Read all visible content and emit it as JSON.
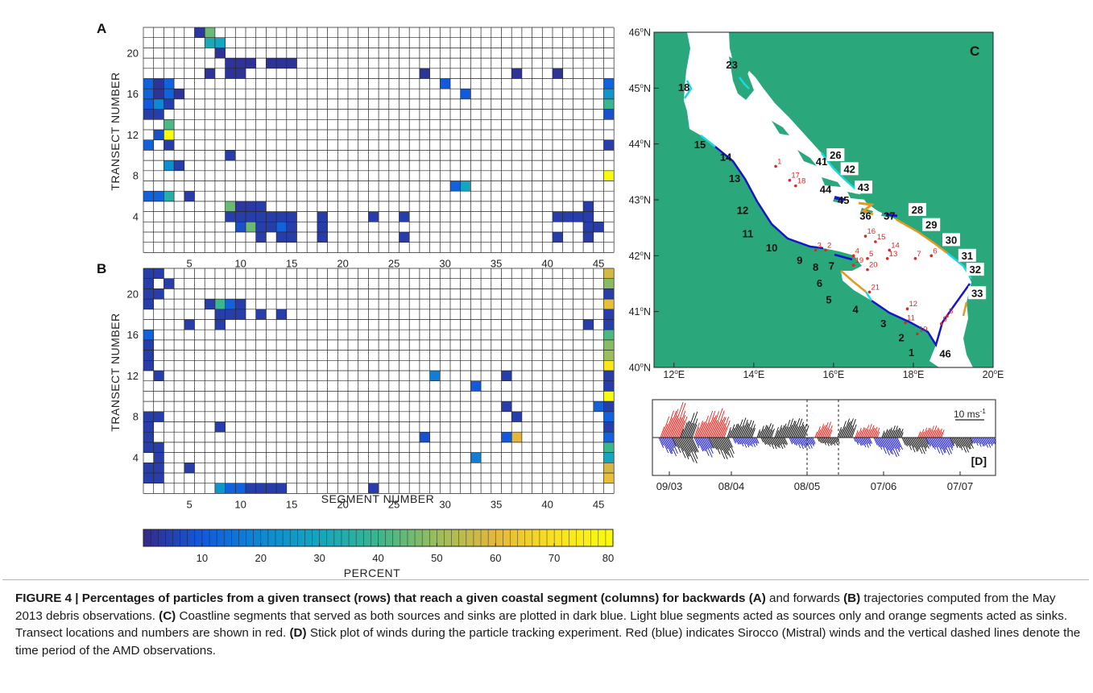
{
  "panels": {
    "a_label": "A",
    "b_label": "B",
    "c_label": "C",
    "d_label": "[D]"
  },
  "heatmap": {
    "ylabel": "TRANSECT NUMBER",
    "xlabel": "SEGMENT NUMBER",
    "x_ticks": [
      "5",
      "10",
      "15",
      "20",
      "25",
      "30",
      "35",
      "40",
      "45"
    ],
    "y_ticks": [
      "4",
      "8",
      "12",
      "16",
      "20"
    ]
  },
  "colorbar": {
    "label": "PERCENT",
    "ticks": [
      "10",
      "20",
      "30",
      "40",
      "50",
      "60",
      "70",
      "80"
    ],
    "stops": [
      "#352a87",
      "#1259dd",
      "#0d88d2",
      "#13a6c0",
      "#3bb58e",
      "#9bbd5b",
      "#e3b73e",
      "#fbe11f",
      "#f9fb0e"
    ]
  },
  "chart_data": [
    {
      "type": "heatmap",
      "panel": "A",
      "xlabel": "SEGMENT NUMBER",
      "ylabel": "TRANSECT NUMBER",
      "xlim": [
        1,
        46
      ],
      "ylim": [
        1,
        22
      ],
      "value_label": "PERCENT",
      "cells": [
        {
          "x": 6,
          "y": 22,
          "v": 3
        },
        {
          "x": 7,
          "y": 22,
          "v": 45
        },
        {
          "x": 7,
          "y": 21,
          "v": 32
        },
        {
          "x": 8,
          "y": 21,
          "v": 30
        },
        {
          "x": 8,
          "y": 20,
          "v": 2
        },
        {
          "x": 9,
          "y": 19,
          "v": 2
        },
        {
          "x": 10,
          "y": 19,
          "v": 2
        },
        {
          "x": 11,
          "y": 19,
          "v": 2
        },
        {
          "x": 13,
          "y": 19,
          "v": 2
        },
        {
          "x": 14,
          "y": 19,
          "v": 2
        },
        {
          "x": 15,
          "y": 19,
          "v": 2
        },
        {
          "x": 7,
          "y": 18,
          "v": 2
        },
        {
          "x": 9,
          "y": 18,
          "v": 2
        },
        {
          "x": 10,
          "y": 18,
          "v": 2
        },
        {
          "x": 28,
          "y": 18,
          "v": 2
        },
        {
          "x": 37,
          "y": 18,
          "v": 2
        },
        {
          "x": 41,
          "y": 18,
          "v": 2
        },
        {
          "x": 1,
          "y": 17,
          "v": 12
        },
        {
          "x": 2,
          "y": 17,
          "v": 2
        },
        {
          "x": 3,
          "y": 17,
          "v": 12
        },
        {
          "x": 30,
          "y": 17,
          "v": 10
        },
        {
          "x": 46,
          "y": 17,
          "v": 12
        },
        {
          "x": 1,
          "y": 16,
          "v": 12
        },
        {
          "x": 2,
          "y": 16,
          "v": 2
        },
        {
          "x": 3,
          "y": 16,
          "v": 12
        },
        {
          "x": 4,
          "y": 16,
          "v": 2
        },
        {
          "x": 32,
          "y": 16,
          "v": 10
        },
        {
          "x": 46,
          "y": 16,
          "v": 25
        },
        {
          "x": 1,
          "y": 15,
          "v": 10
        },
        {
          "x": 2,
          "y": 15,
          "v": 20
        },
        {
          "x": 3,
          "y": 15,
          "v": 4
        },
        {
          "x": 46,
          "y": 15,
          "v": 40
        },
        {
          "x": 1,
          "y": 14,
          "v": 4
        },
        {
          "x": 2,
          "y": 14,
          "v": 4
        },
        {
          "x": 46,
          "y": 14,
          "v": 8
        },
        {
          "x": 3,
          "y": 13,
          "v": 42
        },
        {
          "x": 2,
          "y": 12,
          "v": 8
        },
        {
          "x": 3,
          "y": 12,
          "v": 80
        },
        {
          "x": 1,
          "y": 11,
          "v": 12
        },
        {
          "x": 3,
          "y": 11,
          "v": 4
        },
        {
          "x": 46,
          "y": 11,
          "v": 4
        },
        {
          "x": 9,
          "y": 10,
          "v": 4
        },
        {
          "x": 3,
          "y": 9,
          "v": 22
        },
        {
          "x": 4,
          "y": 9,
          "v": 4
        },
        {
          "x": 46,
          "y": 8,
          "v": 80
        },
        {
          "x": 31,
          "y": 7,
          "v": 12
        },
        {
          "x": 32,
          "y": 7,
          "v": 30
        },
        {
          "x": 1,
          "y": 6,
          "v": 12
        },
        {
          "x": 2,
          "y": 6,
          "v": 12
        },
        {
          "x": 3,
          "y": 6,
          "v": 35
        },
        {
          "x": 5,
          "y": 6,
          "v": 4
        },
        {
          "x": 9,
          "y": 5,
          "v": 45
        },
        {
          "x": 10,
          "y": 5,
          "v": 3
        },
        {
          "x": 11,
          "y": 5,
          "v": 3
        },
        {
          "x": 12,
          "y": 5,
          "v": 4
        },
        {
          "x": 44,
          "y": 5,
          "v": 4
        },
        {
          "x": 9,
          "y": 4,
          "v": 4
        },
        {
          "x": 10,
          "y": 4,
          "v": 4
        },
        {
          "x": 11,
          "y": 4,
          "v": 4
        },
        {
          "x": 12,
          "y": 4,
          "v": 4
        },
        {
          "x": 13,
          "y": 4,
          "v": 4
        },
        {
          "x": 14,
          "y": 4,
          "v": 4
        },
        {
          "x": 15,
          "y": 4,
          "v": 4
        },
        {
          "x": 18,
          "y": 4,
          "v": 4
        },
        {
          "x": 23,
          "y": 4,
          "v": 4
        },
        {
          "x": 26,
          "y": 4,
          "v": 4
        },
        {
          "x": 41,
          "y": 4,
          "v": 4
        },
        {
          "x": 42,
          "y": 4,
          "v": 4
        },
        {
          "x": 43,
          "y": 4,
          "v": 4
        },
        {
          "x": 44,
          "y": 4,
          "v": 4
        },
        {
          "x": 10,
          "y": 3,
          "v": 8
        },
        {
          "x": 11,
          "y": 3,
          "v": 45
        },
        {
          "x": 12,
          "y": 3,
          "v": 4
        },
        {
          "x": 13,
          "y": 3,
          "v": 4
        },
        {
          "x": 14,
          "y": 3,
          "v": 12
        },
        {
          "x": 15,
          "y": 3,
          "v": 4
        },
        {
          "x": 18,
          "y": 3,
          "v": 4
        },
        {
          "x": 44,
          "y": 3,
          "v": 4
        },
        {
          "x": 45,
          "y": 3,
          "v": 4
        },
        {
          "x": 12,
          "y": 2,
          "v": 4
        },
        {
          "x": 14,
          "y": 2,
          "v": 4
        },
        {
          "x": 15,
          "y": 2,
          "v": 4
        },
        {
          "x": 18,
          "y": 2,
          "v": 4
        },
        {
          "x": 26,
          "y": 2,
          "v": 4
        },
        {
          "x": 41,
          "y": 2,
          "v": 4
        },
        {
          "x": 44,
          "y": 2,
          "v": 4
        }
      ]
    },
    {
      "type": "heatmap",
      "panel": "B",
      "xlabel": "SEGMENT NUMBER",
      "ylabel": "TRANSECT NUMBER",
      "xlim": [
        1,
        46
      ],
      "ylim": [
        1,
        22
      ],
      "value_label": "PERCENT",
      "cells": [
        {
          "x": 1,
          "y": 22,
          "v": 4
        },
        {
          "x": 2,
          "y": 22,
          "v": 4
        },
        {
          "x": 46,
          "y": 22,
          "v": 58
        },
        {
          "x": 1,
          "y": 21,
          "v": 4
        },
        {
          "x": 3,
          "y": 21,
          "v": 4
        },
        {
          "x": 46,
          "y": 21,
          "v": 48
        },
        {
          "x": 1,
          "y": 20,
          "v": 4
        },
        {
          "x": 2,
          "y": 20,
          "v": 4
        },
        {
          "x": 46,
          "y": 20,
          "v": 4
        },
        {
          "x": 1,
          "y": 19,
          "v": 4
        },
        {
          "x": 7,
          "y": 19,
          "v": 4
        },
        {
          "x": 8,
          "y": 19,
          "v": 40
        },
        {
          "x": 9,
          "y": 19,
          "v": 12
        },
        {
          "x": 10,
          "y": 19,
          "v": 4
        },
        {
          "x": 46,
          "y": 19,
          "v": 62
        },
        {
          "x": 8,
          "y": 18,
          "v": 4
        },
        {
          "x": 9,
          "y": 18,
          "v": 4
        },
        {
          "x": 10,
          "y": 18,
          "v": 4
        },
        {
          "x": 12,
          "y": 18,
          "v": 4
        },
        {
          "x": 14,
          "y": 18,
          "v": 4
        },
        {
          "x": 46,
          "y": 18,
          "v": 4
        },
        {
          "x": 5,
          "y": 17,
          "v": 4
        },
        {
          "x": 8,
          "y": 17,
          "v": 4
        },
        {
          "x": 44,
          "y": 17,
          "v": 4
        },
        {
          "x": 46,
          "y": 17,
          "v": 4
        },
        {
          "x": 1,
          "y": 16,
          "v": 12
        },
        {
          "x": 46,
          "y": 16,
          "v": 42
        },
        {
          "x": 1,
          "y": 15,
          "v": 4
        },
        {
          "x": 46,
          "y": 15,
          "v": 48
        },
        {
          "x": 1,
          "y": 14,
          "v": 4
        },
        {
          "x": 46,
          "y": 14,
          "v": 50
        },
        {
          "x": 1,
          "y": 13,
          "v": 4
        },
        {
          "x": 46,
          "y": 13,
          "v": 72
        },
        {
          "x": 2,
          "y": 12,
          "v": 4
        },
        {
          "x": 29,
          "y": 12,
          "v": 18
        },
        {
          "x": 36,
          "y": 12,
          "v": 4
        },
        {
          "x": 46,
          "y": 12,
          "v": 4
        },
        {
          "x": 33,
          "y": 11,
          "v": 10
        },
        {
          "x": 46,
          "y": 11,
          "v": 4
        },
        {
          "x": 46,
          "y": 10,
          "v": 80
        },
        {
          "x": 36,
          "y": 9,
          "v": 4
        },
        {
          "x": 45,
          "y": 9,
          "v": 12
        },
        {
          "x": 46,
          "y": 9,
          "v": 4
        },
        {
          "x": 1,
          "y": 8,
          "v": 4
        },
        {
          "x": 2,
          "y": 8,
          "v": 4
        },
        {
          "x": 37,
          "y": 8,
          "v": 4
        },
        {
          "x": 46,
          "y": 8,
          "v": 12
        },
        {
          "x": 1,
          "y": 7,
          "v": 4
        },
        {
          "x": 8,
          "y": 7,
          "v": 4
        },
        {
          "x": 46,
          "y": 7,
          "v": 4
        },
        {
          "x": 1,
          "y": 6,
          "v": 4
        },
        {
          "x": 28,
          "y": 6,
          "v": 8
        },
        {
          "x": 36,
          "y": 6,
          "v": 10
        },
        {
          "x": 37,
          "y": 6,
          "v": 60
        },
        {
          "x": 46,
          "y": 6,
          "v": 12
        },
        {
          "x": 1,
          "y": 5,
          "v": 4
        },
        {
          "x": 2,
          "y": 5,
          "v": 4
        },
        {
          "x": 46,
          "y": 5,
          "v": 40
        },
        {
          "x": 2,
          "y": 4,
          "v": 4
        },
        {
          "x": 33,
          "y": 4,
          "v": 18
        },
        {
          "x": 46,
          "y": 4,
          "v": 30
        },
        {
          "x": 1,
          "y": 3,
          "v": 4
        },
        {
          "x": 2,
          "y": 3,
          "v": 4
        },
        {
          "x": 5,
          "y": 3,
          "v": 4
        },
        {
          "x": 46,
          "y": 3,
          "v": 58
        },
        {
          "x": 1,
          "y": 2,
          "v": 4
        },
        {
          "x": 2,
          "y": 2,
          "v": 4
        },
        {
          "x": 46,
          "y": 2,
          "v": 62
        },
        {
          "x": 8,
          "y": 1,
          "v": 25
        },
        {
          "x": 9,
          "y": 1,
          "v": 12
        },
        {
          "x": 10,
          "y": 1,
          "v": 12
        },
        {
          "x": 11,
          "y": 1,
          "v": 4
        },
        {
          "x": 12,
          "y": 1,
          "v": 4
        },
        {
          "x": 13,
          "y": 1,
          "v": 4
        },
        {
          "x": 14,
          "y": 1,
          "v": 4
        },
        {
          "x": 23,
          "y": 1,
          "v": 4
        }
      ]
    },
    {
      "type": "bar",
      "panel": "D",
      "x_ticks": [
        "09/03",
        "08/04",
        "08/05",
        "07/06",
        "07/07"
      ],
      "scale_label": "10 ms",
      "scale_superscript": "-1",
      "dashed_lines": [
        "08/05",
        "16/05"
      ]
    }
  ],
  "map": {
    "lon_ticks": [
      "12",
      "14",
      "16",
      "18",
      "20"
    ],
    "lat_ticks": [
      "40",
      "41",
      "42",
      "43",
      "44",
      "45",
      "46"
    ],
    "lon_suffix": "E",
    "lat_suffix": "N",
    "colors": {
      "land": "#2aa87c",
      "sea": "#ffffff",
      "source_sink": "#1616c8",
      "source": "#18d8e8",
      "sink": "#e39a20",
      "transect": "#e0251b"
    },
    "segments_plain": [
      {
        "n": "15",
        "lon": 12.65,
        "lat": 43.92
      },
      {
        "n": "14",
        "lon": 13.3,
        "lat": 43.7
      },
      {
        "n": "13",
        "lon": 13.52,
        "lat": 43.32
      },
      {
        "n": "12",
        "lon": 13.72,
        "lat": 42.75
      },
      {
        "n": "11",
        "lon": 13.85,
        "lat": 42.33
      },
      {
        "n": "10",
        "lon": 14.45,
        "lat": 42.08
      },
      {
        "n": "9",
        "lon": 15.15,
        "lat": 41.85
      },
      {
        "n": "8",
        "lon": 15.55,
        "lat": 41.73
      },
      {
        "n": "7",
        "lon": 15.95,
        "lat": 41.75
      },
      {
        "n": "6",
        "lon": 15.65,
        "lat": 41.44
      },
      {
        "n": "5",
        "lon": 15.88,
        "lat": 41.15
      },
      {
        "n": "4",
        "lon": 16.55,
        "lat": 40.97
      },
      {
        "n": "3",
        "lon": 17.25,
        "lat": 40.72
      },
      {
        "n": "2",
        "lon": 17.7,
        "lat": 40.47
      },
      {
        "n": "1",
        "lon": 17.95,
        "lat": 40.2
      },
      {
        "n": "46",
        "lon": 18.8,
        "lat": 40.18
      },
      {
        "n": "18",
        "lon": 12.25,
        "lat": 44.95
      },
      {
        "n": "23",
        "lon": 13.45,
        "lat": 45.35
      },
      {
        "n": "41",
        "lon": 15.7,
        "lat": 43.62
      },
      {
        "n": "44",
        "lon": 15.8,
        "lat": 43.12
      },
      {
        "n": "45",
        "lon": 16.25,
        "lat": 42.93
      },
      {
        "n": "36",
        "lon": 16.8,
        "lat": 42.65
      },
      {
        "n": "37",
        "lon": 17.4,
        "lat": 42.65
      }
    ],
    "segments_boxed": [
      {
        "n": "26",
        "lon": 16.05,
        "lat": 43.75
      },
      {
        "n": "42",
        "lon": 16.4,
        "lat": 43.5
      },
      {
        "n": "43",
        "lon": 16.75,
        "lat": 43.17
      },
      {
        "n": "28",
        "lon": 18.1,
        "lat": 42.77
      },
      {
        "n": "29",
        "lon": 18.45,
        "lat": 42.5
      },
      {
        "n": "30",
        "lon": 18.95,
        "lat": 42.23
      },
      {
        "n": "31",
        "lon": 19.35,
        "lat": 41.95
      },
      {
        "n": "32",
        "lon": 19.55,
        "lat": 41.7
      },
      {
        "n": "33",
        "lon": 19.6,
        "lat": 41.28
      }
    ],
    "transects": [
      {
        "n": "1",
        "lon": 14.55,
        "lat": 43.6
      },
      {
        "n": "17",
        "lon": 14.9,
        "lat": 43.35
      },
      {
        "n": "18",
        "lon": 15.05,
        "lat": 43.25
      },
      {
        "n": "3",
        "lon": 15.55,
        "lat": 42.1
      },
      {
        "n": "2",
        "lon": 15.8,
        "lat": 42.1
      },
      {
        "n": "16",
        "lon": 16.8,
        "lat": 42.35
      },
      {
        "n": "15",
        "lon": 17.05,
        "lat": 42.25
      },
      {
        "n": "14",
        "lon": 17.4,
        "lat": 42.1
      },
      {
        "n": "13",
        "lon": 17.35,
        "lat": 41.95
      },
      {
        "n": "4",
        "lon": 16.5,
        "lat": 42.0
      },
      {
        "n": "5",
        "lon": 16.85,
        "lat": 41.95
      },
      {
        "n": "19",
        "lon": 16.5,
        "lat": 41.83
      },
      {
        "n": "20",
        "lon": 16.85,
        "lat": 41.75
      },
      {
        "n": "21",
        "lon": 16.9,
        "lat": 41.35
      },
      {
        "n": "7",
        "lon": 18.05,
        "lat": 41.95
      },
      {
        "n": "6",
        "lon": 18.45,
        "lat": 42.0
      },
      {
        "n": "12",
        "lon": 17.85,
        "lat": 41.05
      },
      {
        "n": "11",
        "lon": 17.8,
        "lat": 40.8
      },
      {
        "n": "10",
        "lon": 18.1,
        "lat": 40.6
      },
      {
        "n": "8",
        "lon": 18.85,
        "lat": 40.92
      },
      {
        "n": "9",
        "lon": 18.7,
        "lat": 40.78
      }
    ]
  },
  "caption": {
    "part1": "FIGURE 4 | Percentages of particles from a given transect (rows) that reach a given coastal segment (columns) for backwards ",
    "a": "(A)",
    "part2": " and forwards ",
    "b": "(B)",
    "part3": " trajectories computed from the May 2013 debris observations. ",
    "c": "(C)",
    "part4": " Coastline segments that served as both sources and sinks are plotted in dark blue. Light blue segments acted as sources only and orange segments acted as sinks. Transect locations and numbers are shown in red. ",
    "d": "(D)",
    "part5": " Stick plot of winds during the particle tracking experiment. Red (blue) indicates Sirocco (Mistral) winds and the vertical dashed lines denote the time period of the AMD observations."
  }
}
